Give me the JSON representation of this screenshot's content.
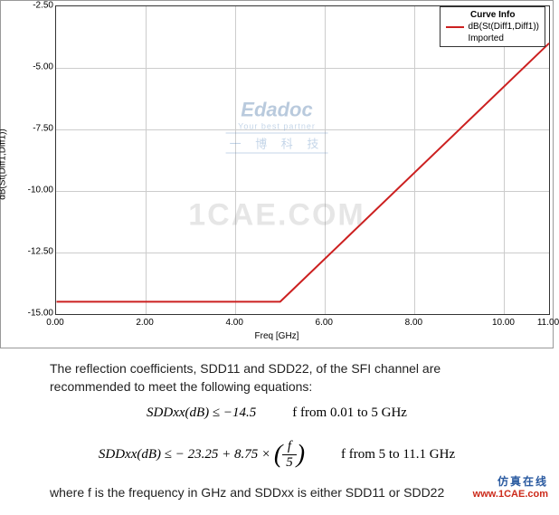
{
  "chart": {
    "type": "line",
    "xlabel": "Freq [GHz]",
    "ylabel": "dB(St(Diff1,Diff1))",
    "xlim": [
      0,
      11
    ],
    "ylim": [
      -15,
      -2.5
    ],
    "xtick_step": 2,
    "ytick_step": 2.5,
    "xticks": [
      0,
      2,
      4,
      6,
      8,
      10,
      11
    ],
    "xtick_labels": [
      "0.00",
      "2.00",
      "4.00",
      "6.00",
      "8.00",
      "10.00",
      "11.00"
    ],
    "yticks": [
      -2.5,
      -5.0,
      -7.5,
      -10.0,
      -12.5,
      -15.0
    ],
    "ytick_labels": [
      "-2.50",
      "-5.00",
      "-7.50",
      "-10.00",
      "-12.50",
      "-15.00"
    ],
    "grid_color": "#cccccc",
    "border_color": "#333333",
    "background_color": "#ffffff",
    "axis_fontsize": 10,
    "tick_fontsize": 10,
    "series": [
      {
        "name": "dB(St(Diff1,Diff1))",
        "sub": "Imported",
        "color": "#cc2020",
        "line_width": 2,
        "x": [
          0.01,
          5.0,
          5.2,
          11.0
        ],
        "y": [
          -14.5,
          -14.5,
          -14.15,
          -4.0
        ]
      }
    ],
    "legend": {
      "title": "Curve Info",
      "position": "top-right",
      "border_color": "#333333",
      "background_color": "#ffffff",
      "fontsize": 10
    }
  },
  "watermarks": {
    "edadoc": {
      "main": "Edadoc",
      "sub": "Your best partner",
      "cn": "一 博 科 技"
    },
    "cae": "1CAE.COM",
    "bottom_cn": "仿真在线",
    "bottom_url": "www.1CAE.com"
  },
  "text": {
    "para1": "The reflection coefficients, SDD11 and SDD22, of the SFI channel are recommended to meet the following equations:",
    "eq1_lhs": "SDDxx(dB) ≤ −14.5",
    "eq1_cond": "f from 0.01 to 5 GHz",
    "eq2_lhs_pre": "SDDxx(dB) ≤ − 23.25 + 8.75 ×",
    "eq2_frac_num": "f",
    "eq2_frac_den": "5",
    "eq2_cond": "f from 5 to 11.1 GHz",
    "para2": "where f is the frequency in GHz and SDDxx is either SDD11 or SDD22"
  }
}
